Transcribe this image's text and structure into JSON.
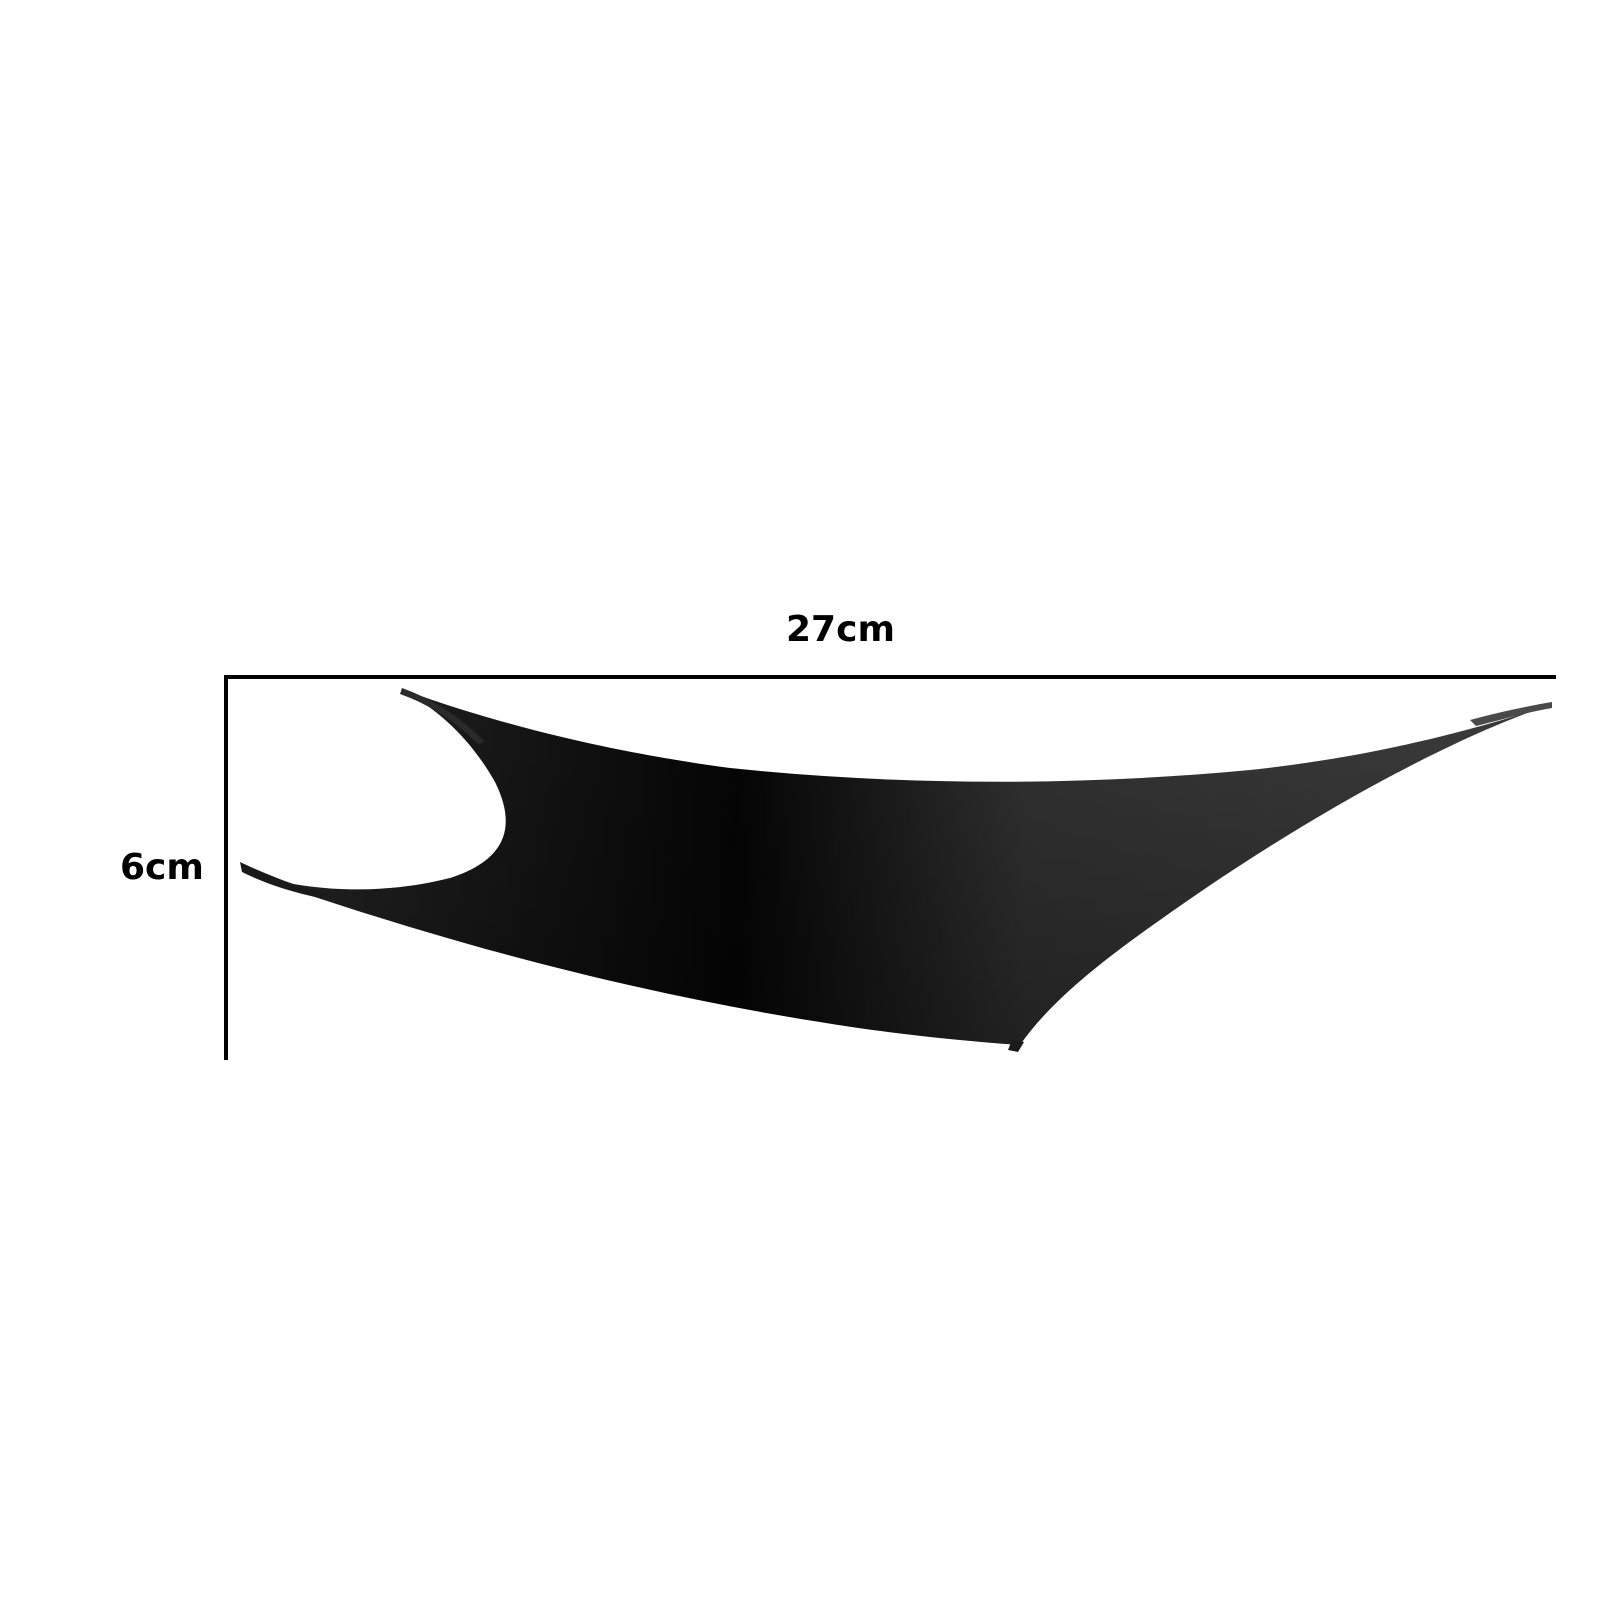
{
  "dimensions": {
    "width_label": "27cm",
    "height_label": "6cm"
  },
  "colors": {
    "background": "#ffffff",
    "dimension_line": "#000000",
    "dimension_text": "#000000",
    "product_dark": "#0a0a0a",
    "product_mid": "#3a3a3a"
  },
  "product": {
    "icon": "curved-tray-shape"
  }
}
